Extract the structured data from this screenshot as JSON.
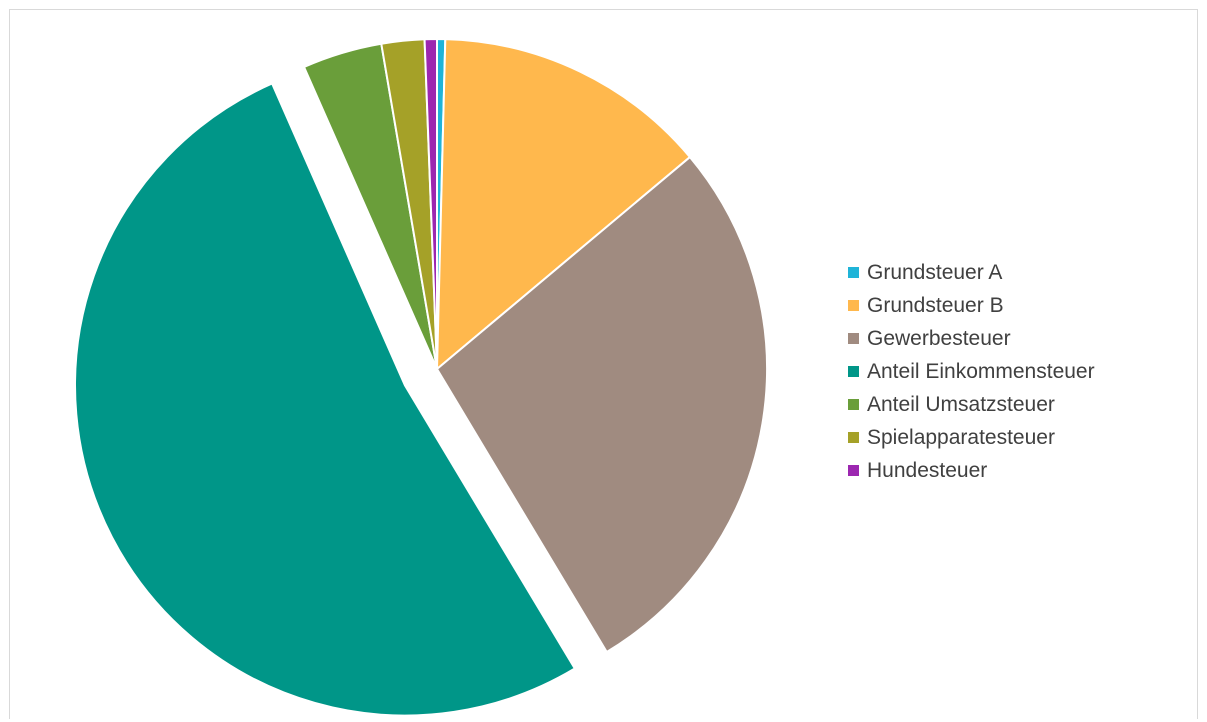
{
  "chart_data": {
    "type": "pie",
    "title": "",
    "legend_position": "right",
    "exploded_slice": "Anteil Einkommensteuer",
    "categories": [
      "Grundsteuer A",
      "Grundsteuer B",
      "Gewerbesteuer",
      "Anteil Einkommensteuer",
      "Anteil Umsatzsteuer",
      "Spielapparatesteuer",
      "Hundesteuer"
    ],
    "values": [
      0.4,
      13.5,
      27.5,
      52.0,
      3.9,
      2.1,
      0.6
    ],
    "colors": [
      "#1fb4d8",
      "#ffb84d",
      "#a08b80",
      "#009688",
      "#6a9e3a",
      "#a5a128",
      "#9c27b0"
    ]
  }
}
